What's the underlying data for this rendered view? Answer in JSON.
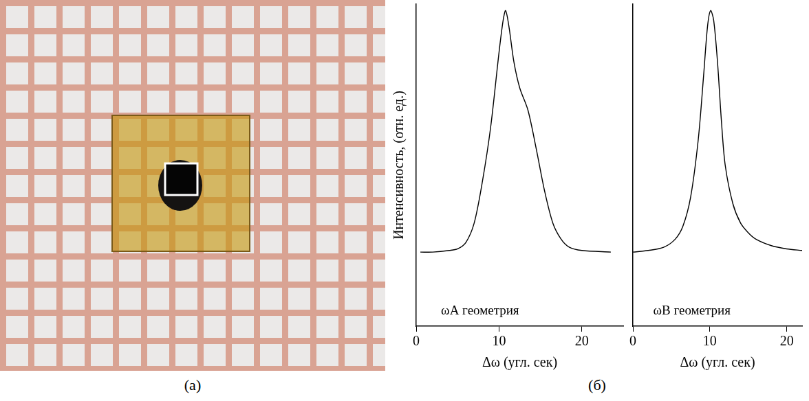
{
  "panel_labels": [
    "(а)",
    "(б)"
  ],
  "chart_data": [
    {
      "type": "line",
      "y_label": "Интенсивность, (отн. ед.)",
      "x_label": "Δω (угл. сек)",
      "annotation": "ωA геометрия",
      "grid": false,
      "tick_labels": "x",
      "color": "#000000",
      "xlim": [
        0,
        25
      ],
      "xticks": [
        0,
        10,
        20
      ],
      "ylim": [
        0,
        1
      ],
      "yticks": [],
      "x": [
        0.5,
        2,
        4,
        5,
        6,
        7,
        8,
        9,
        10,
        10.5,
        10.8,
        11.2,
        11.8,
        12.5,
        13.5,
        14.5,
        15.5,
        16.5,
        17.5,
        18.5,
        20,
        23.5
      ],
      "values": [
        0.23,
        0.23,
        0.235,
        0.24,
        0.26,
        0.32,
        0.45,
        0.62,
        0.85,
        0.95,
        0.98,
        0.93,
        0.82,
        0.74,
        0.67,
        0.55,
        0.42,
        0.32,
        0.27,
        0.245,
        0.235,
        0.23
      ]
    },
    {
      "type": "line",
      "x_label": "Δω (угл. сек)",
      "annotation": "ωB геометрия",
      "grid": false,
      "tick_labels": "x",
      "color": "#000000",
      "xlim": [
        0,
        22
      ],
      "xticks": [
        0,
        10,
        20
      ],
      "ylim": [
        0,
        1
      ],
      "yticks": [],
      "x": [
        0,
        2,
        4,
        5.5,
        6.5,
        7.5,
        8.5,
        9.2,
        9.7,
        10.1,
        10.5,
        11,
        11.5,
        12,
        13,
        14,
        15,
        16,
        18,
        20,
        22
      ],
      "values": [
        0.23,
        0.235,
        0.245,
        0.27,
        0.31,
        0.4,
        0.58,
        0.78,
        0.93,
        0.98,
        0.95,
        0.82,
        0.64,
        0.5,
        0.38,
        0.32,
        0.29,
        0.27,
        0.25,
        0.24,
        0.235
      ]
    }
  ]
}
